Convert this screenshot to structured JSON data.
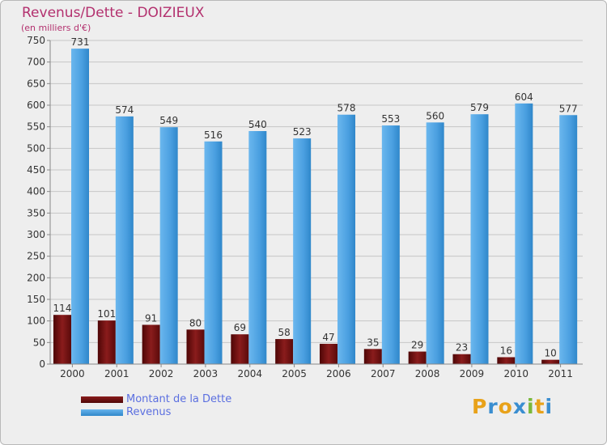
{
  "chart_data": {
    "type": "bar",
    "title": "Revenus/Dette - DOIZIEUX",
    "subtitle": "(en milliers d'€)",
    "categories": [
      "2000",
      "2001",
      "2002",
      "2003",
      "2004",
      "2005",
      "2006",
      "2007",
      "2008",
      "2009",
      "2010",
      "2011"
    ],
    "series": [
      {
        "name": "Montant de la Dette",
        "values": [
          114,
          101,
          91,
          80,
          69,
          58,
          47,
          35,
          29,
          23,
          16,
          10
        ],
        "color": "#6e0f0f"
      },
      {
        "name": "Revenus",
        "values": [
          731,
          574,
          549,
          516,
          540,
          523,
          578,
          553,
          560,
          579,
          604,
          577
        ],
        "color": "#4ea3e4"
      }
    ],
    "ylim": [
      0,
      750
    ],
    "yticks": [
      0,
      50,
      100,
      150,
      200,
      250,
      300,
      350,
      400,
      450,
      500,
      550,
      600,
      650,
      700,
      750
    ],
    "grid": true,
    "legend_position": "bottom-left"
  },
  "logo": {
    "letters": [
      "P",
      "r",
      "o",
      "x",
      "i",
      "t",
      "i"
    ],
    "colors": [
      "#e8a21a",
      "#3a8ed0",
      "#e8a21a",
      "#3a8ed0",
      "#7ab83a",
      "#e8a21a",
      "#3a8ed0"
    ]
  }
}
